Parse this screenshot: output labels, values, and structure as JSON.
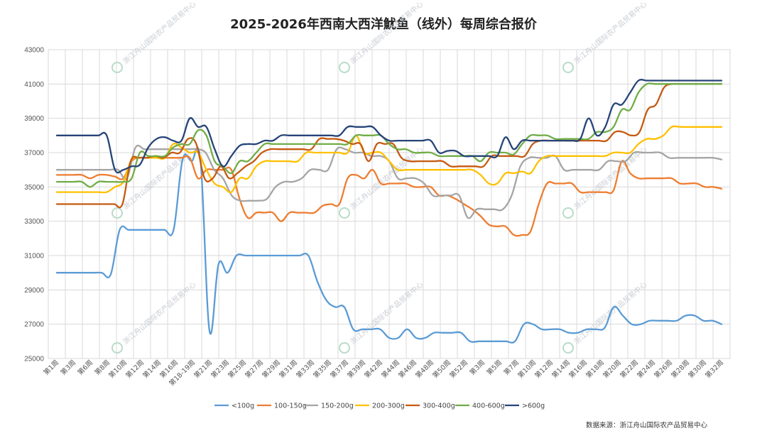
{
  "chart_data": {
    "type": "line",
    "title": "2025-2026年西南大西洋魷鱼（线外）每周综合报价",
    "source": "数据来源：浙江舟山国际农产品贸易中心",
    "watermark": "浙江舟山国际农产品贸易中心",
    "ylim": [
      25000,
      43000
    ],
    "yticks": [
      25000,
      27000,
      29000,
      31000,
      33000,
      35000,
      37000,
      39000,
      41000,
      43000
    ],
    "grid": "both",
    "legend_position": "bottom",
    "x_tick_labels": [
      "第1周",
      "第3周",
      "第6周",
      "第8周",
      "第10周",
      "第12周",
      "第14周",
      "第16周",
      "第18-19周",
      "第21周",
      "第23周",
      "第25周",
      "第27周",
      "第29周",
      "第31周",
      "第33周",
      "第35周",
      "第37周",
      "第39周",
      "第42周",
      "第44周",
      "第46周",
      "第48周",
      "第50周",
      "第52周",
      "第3周",
      "第5周",
      "第7周",
      "第10周",
      "第12周",
      "第14周",
      "第16周",
      "第18周",
      "第20周",
      "第22周",
      "第24周",
      "第26周",
      "第28周",
      "第30周",
      "第32周"
    ],
    "series": [
      {
        "name": "<100g",
        "color": "#5b9bd5",
        "values": [
          30000,
          30000,
          30000,
          30000,
          30000,
          30000,
          29900,
          32500,
          32500,
          32500,
          32500,
          32500,
          32500,
          32500,
          36600,
          36500,
          36500,
          26600,
          30500,
          30000,
          31000,
          31000,
          31000,
          31000,
          31000,
          31000,
          31000,
          31000,
          31000,
          29500,
          28400,
          28000,
          28000,
          26700,
          26700,
          26700,
          26700,
          26200,
          26200,
          26700,
          26200,
          26200,
          26500,
          26500,
          26500,
          26500,
          26000,
          26000,
          26000,
          26000,
          26000,
          26000,
          27000,
          27000,
          26700,
          26700,
          26700,
          26500,
          26500,
          26700,
          26700,
          26800,
          28000,
          27500,
          27000,
          27000,
          27200,
          27200,
          27200,
          27200,
          27500,
          27500,
          27200,
          27200,
          27000
        ]
      },
      {
        "name": "100-150g",
        "color": "#ed7d31",
        "values": [
          35700,
          35700,
          35700,
          35700,
          35500,
          35700,
          35700,
          35600,
          35500,
          36500,
          36700,
          36700,
          36700,
          36700,
          36700,
          36700,
          36700,
          35500,
          36000,
          36000,
          36000,
          36000,
          34300,
          33200,
          33500,
          33500,
          33500,
          33000,
          33500,
          33500,
          33500,
          33500,
          33900,
          34000,
          34000,
          35500,
          35700,
          35500,
          36000,
          35200,
          35200,
          35200,
          35200,
          35000,
          35000,
          35000,
          34500,
          34500,
          34300,
          34000,
          33700,
          33300,
          32800,
          32700,
          32700,
          32200,
          32200,
          32400,
          34000,
          35200,
          35200,
          35200,
          35200,
          34700,
          34700,
          34700,
          34700,
          34800,
          36500,
          35800,
          35500,
          35500,
          35500,
          35500,
          35500,
          35200,
          35200,
          35200,
          35000,
          35000,
          34900
        ]
      },
      {
        "name": "150-200g",
        "color": "#a5a5a5",
        "values": [
          36000,
          36000,
          36000,
          36000,
          36000,
          36000,
          36000,
          36000,
          35500,
          37300,
          37200,
          37200,
          37200,
          37200,
          37200,
          37200,
          37200,
          37000,
          36000,
          35500,
          34500,
          34200,
          34200,
          34200,
          34300,
          35000,
          35300,
          35300,
          35500,
          36000,
          36000,
          36000,
          37200,
          37200,
          37000,
          37000,
          36800,
          36800,
          36500,
          35500,
          35500,
          35500,
          35200,
          34500,
          34500,
          34500,
          34500,
          33200,
          33700,
          33700,
          33700,
          33700,
          34500,
          36200,
          36700,
          36700,
          36700,
          36800,
          36000,
          36000,
          36000,
          36000,
          36000,
          36500,
          36500,
          36500,
          37000,
          37000,
          37000,
          37000,
          36700,
          36700,
          36700,
          36700,
          36700,
          36700,
          36600
        ]
      },
      {
        "name": "200-300g",
        "color": "#ffc000",
        "values": [
          34700,
          34700,
          34700,
          34700,
          34700,
          34700,
          34700,
          35000,
          35300,
          36600,
          36700,
          36700,
          36700,
          36700,
          37500,
          37300,
          37000,
          37000,
          36000,
          35200,
          35000,
          34700,
          35500,
          35500,
          36200,
          36500,
          36500,
          36500,
          36500,
          36500,
          37000,
          37000,
          37000,
          37000,
          37000,
          37000,
          38000,
          37000,
          37000,
          37000,
          36500,
          36000,
          36000,
          36000,
          36000,
          36000,
          36000,
          36000,
          36000,
          36000,
          36000,
          35700,
          35200,
          35200,
          35800,
          35800,
          35900,
          35800,
          36500,
          36800,
          36800,
          36800,
          36800,
          36800,
          36800,
          36800,
          36800,
          37000,
          37000,
          37000,
          37500,
          37800,
          37800,
          38000,
          38500,
          38500,
          38500,
          38500,
          38500,
          38500,
          38500
        ]
      },
      {
        "name": "300-400g",
        "color": "#c55a11",
        "values": [
          34000,
          34000,
          34000,
          34000,
          34000,
          34000,
          34000,
          34000,
          34000,
          36500,
          36700,
          36700,
          36800,
          36700,
          37000,
          37000,
          37800,
          37500,
          35500,
          35500,
          36200,
          35500,
          35800,
          36200,
          36500,
          37000,
          37200,
          37200,
          37200,
          37200,
          37200,
          37200,
          37800,
          37800,
          37800,
          37700,
          37500,
          37500,
          36500,
          37500,
          37500,
          37500,
          36700,
          36500,
          36500,
          36500,
          36500,
          36500,
          36200,
          36200,
          36200,
          36200,
          36200,
          36800,
          36800,
          36800,
          36800,
          36800,
          37500,
          37700,
          37700,
          37700,
          37700,
          37700,
          37700,
          37700,
          37700,
          37700,
          38200,
          38200,
          38000,
          38200,
          39500,
          39800,
          40800,
          41000,
          41000,
          41000,
          41000,
          41000,
          41000,
          41000
        ]
      },
      {
        "name": "400-600g",
        "color": "#70ad47",
        "values": [
          35300,
          35300,
          35300,
          35300,
          35000,
          35300,
          35300,
          35300,
          35300,
          35500,
          37000,
          36800,
          36800,
          36800,
          37300,
          37500,
          37500,
          38300,
          38000,
          36500,
          36200,
          35800,
          36500,
          36500,
          37000,
          37500,
          37500,
          37500,
          37500,
          37500,
          37500,
          37500,
          37500,
          37500,
          37500,
          37500,
          38000,
          38000,
          38000,
          38000,
          37500,
          37200,
          37200,
          37000,
          37000,
          37000,
          36800,
          36800,
          36800,
          36800,
          36800,
          36500,
          37000,
          37000,
          37000,
          36900,
          37500,
          38000,
          38000,
          38000,
          37800,
          37800,
          37800,
          37800,
          37800,
          38200,
          38200,
          38500,
          39500,
          39500,
          40500,
          41000,
          41000,
          41000,
          41000,
          41000,
          41000,
          41000,
          41000,
          41000,
          41000
        ]
      },
      {
        "name": ">600g",
        "color": "#264478",
        "values": [
          38000,
          38000,
          38000,
          38000,
          38000,
          38000,
          38000,
          36000,
          36000,
          36200,
          36300,
          37300,
          37800,
          37900,
          37700,
          37700,
          39000,
          38500,
          38500,
          37200,
          36200,
          36800,
          37400,
          37500,
          37500,
          37700,
          37700,
          38000,
          38000,
          38000,
          38000,
          38000,
          38000,
          38000,
          38000,
          38500,
          38500,
          38500,
          38500,
          38000,
          37700,
          37700,
          37700,
          37700,
          37700,
          37700,
          37000,
          37100,
          37100,
          36800,
          36800,
          36800,
          36800,
          36800,
          37900,
          37200,
          37700,
          37700,
          37700,
          37700,
          37700,
          37700,
          37700,
          37800,
          39000,
          38000,
          38500,
          39800,
          39800,
          40500,
          41200,
          41200,
          41200,
          41200,
          41200,
          41200,
          41200,
          41200,
          41200,
          41200,
          41200
        ]
      }
    ]
  }
}
